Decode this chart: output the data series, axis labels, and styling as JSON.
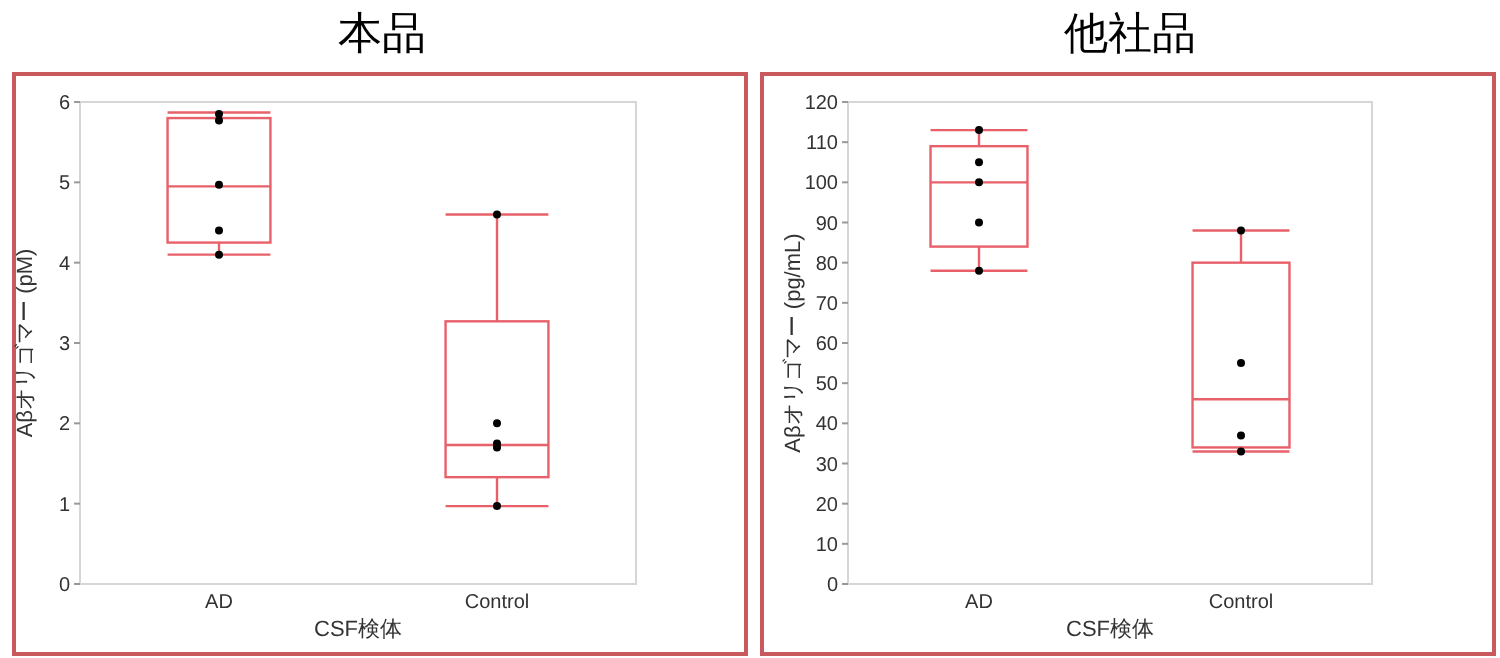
{
  "chart_data": [
    {
      "type": "box",
      "title": "本品",
      "xlabel": "CSF検体",
      "ylabel": "Aβオリゴマー (pM)",
      "categories": [
        "AD",
        "Control"
      ],
      "color": "#e8606a",
      "ylim": [
        0,
        6
      ],
      "yticks": [
        0,
        1,
        2,
        3,
        4,
        5,
        6
      ],
      "grid": false,
      "boxes": [
        {
          "low": 4.1,
          "q1": 4.25,
          "median": 4.95,
          "q3": 5.8,
          "high": 5.87
        },
        {
          "low": 0.97,
          "q1": 1.33,
          "median": 1.73,
          "q3": 3.27,
          "high": 4.6
        }
      ],
      "series": [
        {
          "type": "scatter",
          "color": "#000000",
          "x": [
            "AD",
            "AD",
            "AD",
            "AD",
            "AD",
            "Control",
            "Control",
            "Control",
            "Control",
            "Control"
          ],
          "values": [
            5.85,
            5.77,
            4.97,
            4.4,
            4.1,
            4.6,
            2.0,
            1.75,
            1.7,
            0.97
          ]
        }
      ]
    },
    {
      "type": "box",
      "title": "他社品",
      "xlabel": "CSF検体",
      "ylabel": "Aβオリゴマー (pg/mL)",
      "categories": [
        "AD",
        "Control"
      ],
      "color": "#e8606a",
      "ylim": [
        0,
        120
      ],
      "yticks": [
        0,
        10,
        20,
        30,
        40,
        50,
        60,
        70,
        80,
        90,
        100,
        110,
        120
      ],
      "grid": false,
      "boxes": [
        {
          "low": 78,
          "q1": 84,
          "median": 100,
          "q3": 109,
          "high": 113
        },
        {
          "low": 33,
          "q1": 34,
          "median": 46,
          "q3": 80,
          "high": 88
        }
      ],
      "series": [
        {
          "type": "scatter",
          "color": "#000000",
          "x": [
            "AD",
            "AD",
            "AD",
            "AD",
            "AD",
            "Control",
            "Control",
            "Control",
            "Control"
          ],
          "values": [
            113,
            105,
            100,
            90,
            78,
            88,
            55,
            37,
            33
          ]
        }
      ]
    }
  ]
}
